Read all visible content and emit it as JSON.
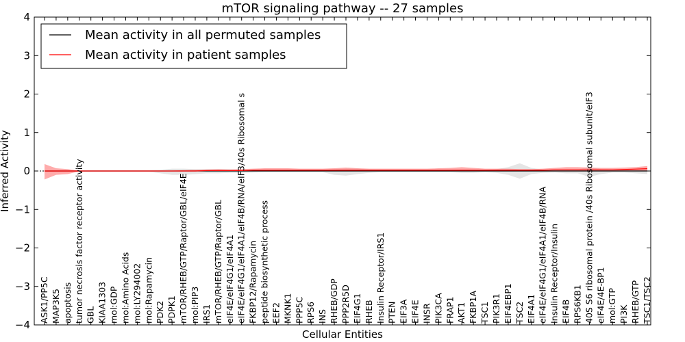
{
  "chart_data": {
    "type": "line",
    "title": "mTOR signaling pathway -- 27 samples",
    "xlabel": "Cellular Entities",
    "ylabel": "Inferred Activity",
    "ylim": [
      -4,
      4
    ],
    "yticks": [
      -4,
      -3,
      -2,
      -1,
      0,
      1,
      2,
      3,
      4
    ],
    "ytick_labels": [
      "−4",
      "−3",
      "−2",
      "−1",
      "0",
      "1",
      "2",
      "3",
      "4"
    ],
    "grid": false,
    "legend_position": "top-left",
    "categories": [
      "ASK1/PP5C",
      "MAP3K5",
      "apoptosis",
      "tumor necrosis factor receptor activity",
      "GBL",
      "KIAA1303",
      "mol:GDP",
      "mol:Amino Acids",
      "mol:LY294002",
      "mol:Rapamycin",
      "PDK2",
      "PDPK1",
      "mTOR/RHEB/GTP/Raptor/GBL/eIF4E",
      "mol:PIP3",
      "IRS1",
      "mTOR/RHEB/GTP/Raptor/GBL",
      "eIF4E/eIF4G1/eIF4A1",
      "eIF4E/eIF4G1/eIF4A1/eIF4B/RNA/eIF3/40s Ribosomal s",
      "FKBP12/Rapamycin",
      "peptide biosynthetic process",
      "EEF2",
      "MKNK1",
      "PPP5C",
      "RPS6",
      "INS",
      "RHEB/GDP",
      "PPP2R5D",
      "EIF4G1",
      "RHEB",
      "Insulin Receptor/IRS1",
      "PTEN",
      "EIF3A",
      "EIF4E",
      "INSR",
      "PIK3CA",
      "FRAP1",
      "AKT1",
      "FKBP1A",
      "TSC1",
      "PIK3R1",
      "EIF4EBP1",
      "TSC2",
      "EIF4A1",
      "eIF4E/eIF4G1/eIF4A1/eIF4B/RNA",
      "Insulin Receptor/Insulin",
      "EIF4B",
      "RPS6KB1",
      "40S S6 ribosomal protein /40s Ribosomal subunit/eIF3",
      "eIF4E/4E-BP1",
      "mol:GTP",
      "PI3K",
      "RHEB/GTP",
      "TSC1/TSC2"
    ],
    "series": [
      {
        "name": "Mean activity in all permuted samples",
        "color": "#000000",
        "values": [
          0,
          0,
          0,
          0,
          0,
          0,
          0,
          0,
          0,
          0,
          0,
          0,
          0,
          0,
          0,
          0,
          0,
          0,
          0,
          0,
          0,
          0,
          0,
          0,
          0,
          0,
          0,
          0,
          0,
          0,
          0,
          0,
          0,
          0,
          0,
          0,
          0,
          0,
          0,
          0,
          0,
          0,
          0,
          0,
          0,
          0,
          0,
          0,
          0,
          0,
          0,
          0,
          0
        ],
        "band_upper": [
          0.02,
          0.02,
          0.02,
          0.02,
          0.02,
          0.02,
          0.02,
          0.02,
          0.02,
          0.02,
          0.03,
          0.06,
          0.06,
          0.05,
          0.05,
          0.05,
          0.05,
          0.04,
          0.03,
          0.03,
          0.03,
          0.03,
          0.03,
          0.03,
          0.03,
          0.05,
          0.06,
          0.06,
          0.04,
          0.03,
          0.03,
          0.03,
          0.03,
          0.03,
          0.03,
          0.03,
          0.04,
          0.04,
          0.03,
          0.05,
          0.1,
          0.2,
          0.08,
          0.04,
          0.03,
          0.04,
          0.04,
          0.1,
          0.05,
          0.03,
          0.03,
          0.03,
          0.03
        ],
        "band_lower": [
          -0.02,
          -0.02,
          -0.02,
          -0.02,
          -0.02,
          -0.02,
          -0.02,
          -0.02,
          -0.02,
          -0.02,
          -0.06,
          -0.1,
          -0.1,
          -0.08,
          -0.06,
          -0.06,
          -0.05,
          -0.05,
          -0.04,
          -0.03,
          -0.03,
          -0.03,
          -0.03,
          -0.03,
          -0.03,
          -0.1,
          -0.12,
          -0.08,
          -0.05,
          -0.03,
          -0.03,
          -0.03,
          -0.03,
          -0.03,
          -0.03,
          -0.03,
          -0.05,
          -0.05,
          -0.03,
          -0.05,
          -0.1,
          -0.2,
          -0.08,
          -0.05,
          -0.04,
          -0.06,
          -0.06,
          -0.15,
          -0.08,
          -0.04,
          -0.04,
          -0.06,
          -0.08
        ],
        "band_color": "#cccccc"
      },
      {
        "name": "Mean activity in patient samples",
        "color": "#ff0000",
        "values": [
          0,
          0,
          0,
          0,
          0,
          0,
          0,
          0,
          0,
          0,
          0,
          0,
          0,
          0,
          0.01,
          0.01,
          0.01,
          0.01,
          0.02,
          0.02,
          0.02,
          0.02,
          0.02,
          0.02,
          0.02,
          0.02,
          0.02,
          0.02,
          0.02,
          0.02,
          0.02,
          0.02,
          0.02,
          0.02,
          0.02,
          0.02,
          0.02,
          0.02,
          0.02,
          0.02,
          0.02,
          0.02,
          0.02,
          0.02,
          0.03,
          0.03,
          0.03,
          0.03,
          0.03,
          0.03,
          0.04,
          0.05,
          0.06
        ],
        "band_upper": [
          0.18,
          0.07,
          0.05,
          0.01,
          0.01,
          0.01,
          0.01,
          0.01,
          0.01,
          0.01,
          0.01,
          0.01,
          0.02,
          0.03,
          0.04,
          0.05,
          0.04,
          0.05,
          0.06,
          0.07,
          0.07,
          0.07,
          0.06,
          0.06,
          0.06,
          0.07,
          0.09,
          0.07,
          0.06,
          0.06,
          0.06,
          0.06,
          0.06,
          0.06,
          0.07,
          0.08,
          0.1,
          0.08,
          0.06,
          0.06,
          0.06,
          0.05,
          0.05,
          0.06,
          0.08,
          0.1,
          0.1,
          0.09,
          0.08,
          0.08,
          0.09,
          0.1,
          0.13
        ],
        "band_lower": [
          -0.22,
          -0.1,
          -0.08,
          -0.01,
          -0.01,
          -0.01,
          -0.01,
          -0.01,
          -0.01,
          -0.01,
          -0.01,
          -0.01,
          -0.01,
          -0.01,
          -0.01,
          -0.01,
          -0.01,
          -0.01,
          0.0,
          0.0,
          0.0,
          0.0,
          0.0,
          0.0,
          0.0,
          0.0,
          0.0,
          0.0,
          0.0,
          0.0,
          0.0,
          0.0,
          0.0,
          0.0,
          0.0,
          0.0,
          0.0,
          0.0,
          0.0,
          0.0,
          0.0,
          0.0,
          0.0,
          0.0,
          0.0,
          0.0,
          0.0,
          0.0,
          0.0,
          0.0,
          0.0,
          0.0,
          0.0
        ],
        "band_color": "#ff6666"
      }
    ]
  }
}
